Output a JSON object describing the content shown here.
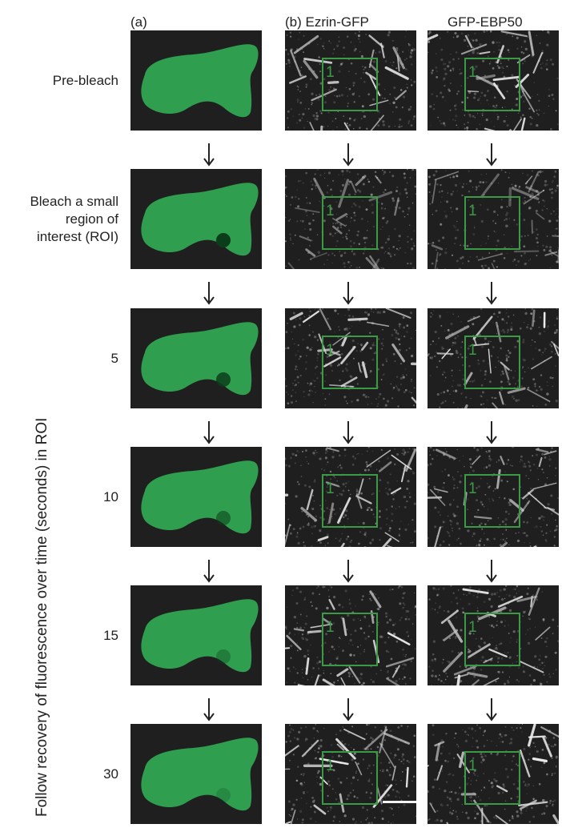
{
  "headers": {
    "col_a": "(a)",
    "col_b": "(b) Ezrin-GFP",
    "col_c": "GFP-EBP50"
  },
  "vertical_label": "Follow recovery of fluorescence over time (seconds) in ROI",
  "roi_number": "1",
  "colors": {
    "cell_green": "#2f9e4f",
    "panel_bg": "#1f1f1f",
    "roi_box": "#3a9a45"
  },
  "rows": [
    {
      "label_lines": [
        "Pre-bleach"
      ],
      "spot_visibility": 0
    },
    {
      "label_lines": [
        "Bleach a small",
        "region of",
        "interest (ROI)"
      ],
      "spot_visibility": 1.0
    },
    {
      "label_lines": [
        "5"
      ],
      "spot_visibility": 0.85
    },
    {
      "label_lines": [
        "10"
      ],
      "spot_visibility": 0.55
    },
    {
      "label_lines": [
        "15"
      ],
      "spot_visibility": 0.35
    },
    {
      "label_lines": [
        "30"
      ],
      "spot_visibility": 0.2
    }
  ]
}
